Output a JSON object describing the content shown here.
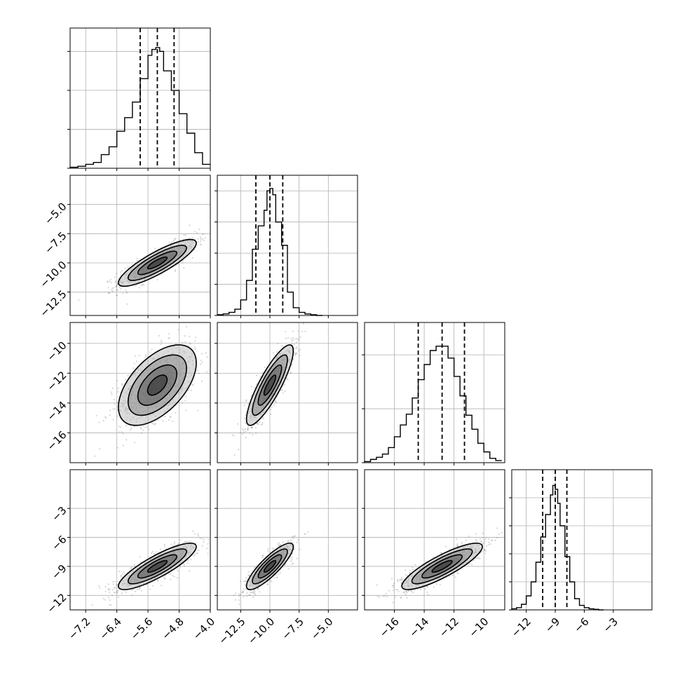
{
  "chart_data": {
    "type": "corner",
    "grid": true,
    "parameters": [
      {
        "range": [
          -7.6,
          -4.0
        ],
        "ticks": [
          -7.2,
          -6.4,
          -5.6,
          -4.8,
          -4.0
        ],
        "tick_labels": [
          "−7.2",
          "−6.4",
          "−5.6",
          "−4.8",
          "−4.0"
        ],
        "quantiles": [
          -5.8,
          -5.36,
          -4.93
        ],
        "hist_max": 0.072,
        "hist_ticks": [
          0,
          0.02,
          0.04,
          0.06
        ],
        "hist_bins": [
          -7.6,
          -7.4,
          -7.2,
          -7.0,
          -6.8,
          -6.6,
          -6.4,
          -6.2,
          -6.0,
          -5.8,
          -5.6,
          -5.5,
          -5.4,
          -5.3,
          -5.2,
          -5.0,
          -4.8,
          -4.6,
          -4.4,
          -4.2,
          -4.0
        ],
        "hist_values": [
          0.0005,
          0.001,
          0.002,
          0.003,
          0.007,
          0.011,
          0.019,
          0.026,
          0.034,
          0.046,
          0.058,
          0.061,
          0.062,
          0.06,
          0.05,
          0.04,
          0.028,
          0.018,
          0.008,
          0.002
        ]
      },
      {
        "range": [
          -14.5,
          -2.5
        ],
        "ticks": [
          -12.5,
          -10.0,
          -7.5,
          -5.0
        ],
        "tick_labels": [
          "−12.5",
          "−10.0",
          "−7.5",
          "−5.0"
        ],
        "quantiles": [
          -11.2,
          -10.0,
          -8.9
        ],
        "hist_max": 0.18,
        "hist_ticks": [
          0,
          0.04,
          0.08,
          0.12,
          0.16
        ],
        "hist_bins": [
          -14.5,
          -14.0,
          -13.5,
          -13.0,
          -12.5,
          -12.0,
          -11.5,
          -11.0,
          -10.5,
          -10.25,
          -10.0,
          -9.75,
          -9.5,
          -9.0,
          -8.5,
          -8.0,
          -7.5,
          -7.0,
          -6.5,
          -6.0,
          -5.5
        ],
        "hist_values": [
          0.001,
          0.002,
          0.004,
          0.008,
          0.02,
          0.045,
          0.085,
          0.115,
          0.135,
          0.16,
          0.163,
          0.155,
          0.12,
          0.09,
          0.03,
          0.01,
          0.004,
          0.002,
          0.001,
          0.0
        ]
      },
      {
        "range": [
          -18.0,
          -8.6
        ],
        "ticks": [
          -16,
          -14,
          -12,
          -10
        ],
        "tick_labels": [
          "−16",
          "−14",
          "−12",
          "−10"
        ],
        "quantiles": [
          -14.4,
          -12.8,
          -11.3
        ],
        "hist_max": 0.13,
        "hist_ticks": [
          0,
          0.05,
          0.1
        ],
        "hist_bins": [
          -18.0,
          -17.6,
          -17.2,
          -16.8,
          -16.4,
          -16.0,
          -15.6,
          -15.2,
          -14.8,
          -14.4,
          -14.0,
          -13.6,
          -13.2,
          -12.8,
          -12.4,
          -12.0,
          -11.6,
          -11.2,
          -10.8,
          -10.4,
          -10.0,
          -9.6,
          -9.2,
          -8.8
        ],
        "hist_values": [
          0.001,
          0.003,
          0.005,
          0.008,
          0.014,
          0.024,
          0.035,
          0.045,
          0.06,
          0.077,
          0.091,
          0.104,
          0.108,
          0.108,
          0.097,
          0.08,
          0.062,
          0.044,
          0.031,
          0.018,
          0.01,
          0.004,
          0.002
        ]
      },
      {
        "range": [
          -13.5,
          1.0
        ],
        "ticks": [
          -12,
          -9,
          -6,
          -3
        ],
        "tick_labels": [
          "−12",
          "−9",
          "−6",
          "−3"
        ],
        "quantiles": [
          -10.3,
          -9.0,
          -7.8
        ],
        "hist_max": 0.25,
        "hist_ticks": [
          0,
          0.05,
          0.1,
          0.15,
          0.2
        ],
        "hist_bins": [
          -13.5,
          -13.0,
          -12.5,
          -12.0,
          -11.5,
          -11.0,
          -10.5,
          -10.0,
          -9.5,
          -9.25,
          -9.0,
          -8.75,
          -8.5,
          -8.0,
          -7.5,
          -7.0,
          -6.5,
          -6.0,
          -5.5,
          -5.0,
          -4.5,
          -4.0
        ],
        "hist_values": [
          0.002,
          0.004,
          0.01,
          0.025,
          0.05,
          0.085,
          0.13,
          0.17,
          0.205,
          0.222,
          0.215,
          0.19,
          0.15,
          0.095,
          0.05,
          0.02,
          0.008,
          0.004,
          0.002,
          0.001,
          0.0
        ]
      }
    ],
    "pairs": [
      {
        "x": 0,
        "y": 1,
        "mean": [
          -5.36,
          -10.0
        ],
        "sd": [
          0.5,
          1.0
        ],
        "rho": 0.85
      },
      {
        "x": 0,
        "y": 2,
        "mean": [
          -5.36,
          -12.8
        ],
        "sd": [
          0.5,
          1.35
        ],
        "rho": 0.55
      },
      {
        "x": 1,
        "y": 2,
        "mean": [
          -10.0,
          -12.8
        ],
        "sd": [
          1.0,
          1.35
        ],
        "rho": 0.85
      },
      {
        "x": 0,
        "y": 3,
        "mean": [
          -5.36,
          -9.0
        ],
        "sd": [
          0.5,
          1.2
        ],
        "rho": 0.85
      },
      {
        "x": 1,
        "y": 3,
        "mean": [
          -10.0,
          -9.0
        ],
        "sd": [
          1.0,
          1.2
        ],
        "rho": 0.85
      },
      {
        "x": 2,
        "y": 3,
        "mean": [
          -12.8,
          -9.0
        ],
        "sd": [
          1.35,
          1.2
        ],
        "rho": 0.85
      }
    ],
    "contour_levels_sigma": [
      0.5,
      1.0,
      1.5,
      2.0
    ],
    "colors": {
      "line": "#000000",
      "grid": "#b0b0b0",
      "points": "#777777"
    }
  }
}
